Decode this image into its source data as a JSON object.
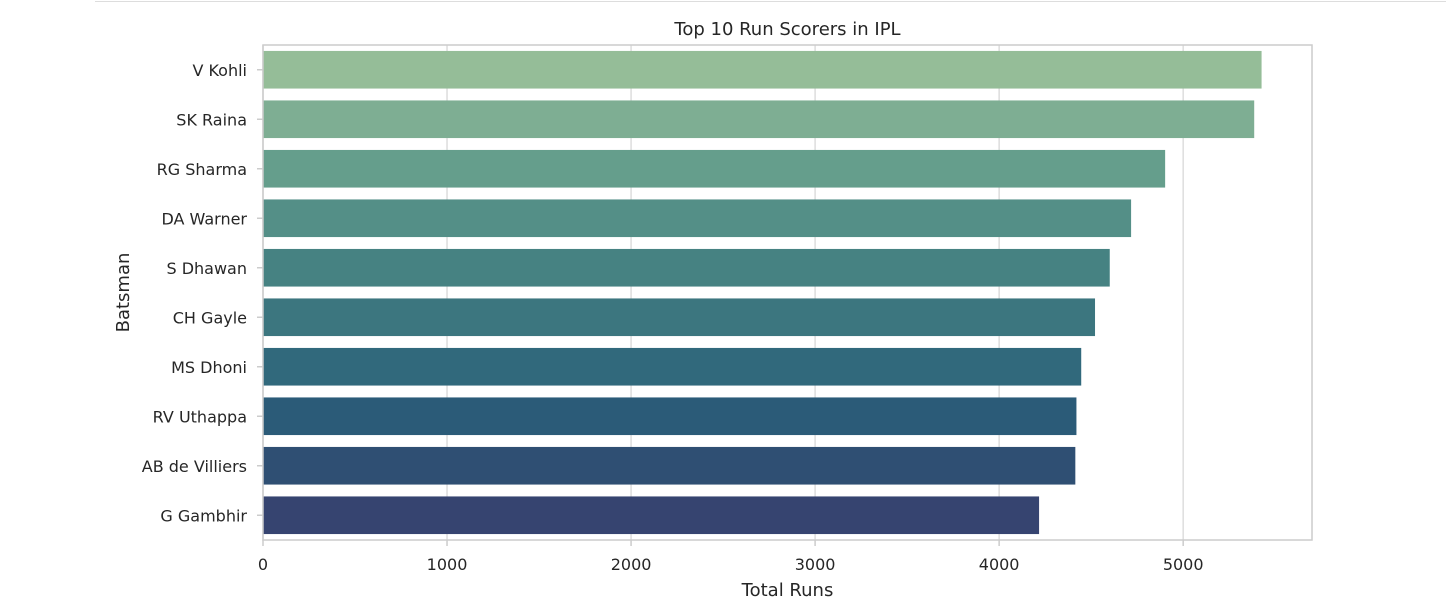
{
  "chart_data": {
    "type": "bar",
    "orientation": "horizontal",
    "title": "Top 10 Run Scorers in IPL",
    "xlabel": "Total Runs",
    "ylabel": "Batsman",
    "xlim": [
      0,
      5700
    ],
    "xticks": [
      0,
      1000,
      2000,
      3000,
      4000,
      5000
    ],
    "grid": true,
    "categories": [
      "V Kohli",
      "SK Raina",
      "RG Sharma",
      "DA Warner",
      "S Dhawan",
      "CH Gayle",
      "MS Dhoni",
      "RV Uthappa",
      "AB de Villiers",
      "G Gambhir"
    ],
    "values": [
      5426,
      5386,
      4902,
      4717,
      4601,
      4521,
      4446,
      4420,
      4414,
      4217
    ],
    "colors": [
      "#95bd98",
      "#7eae93",
      "#659e8c",
      "#548f87",
      "#468282",
      "#3c767f",
      "#31697c",
      "#2b5b78",
      "#2f4f73",
      "#364470"
    ]
  }
}
